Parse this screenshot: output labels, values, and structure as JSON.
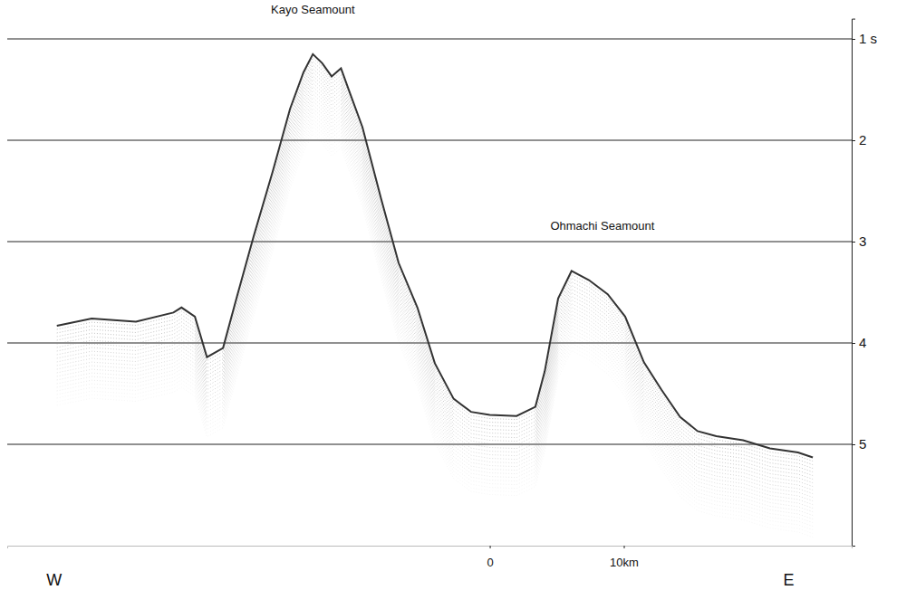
{
  "chart_data": {
    "type": "line",
    "annotations": [
      {
        "text": "Kayo Seamount",
        "x": -13.2,
        "y": 0.72
      },
      {
        "text": "Ohmachi Seamount",
        "x": 8.4,
        "y": 2.85
      },
      {
        "text": "W",
        "x": -32.5,
        "y": 6.35
      },
      {
        "text": "E",
        "x": 22.3,
        "y": 6.35
      }
    ],
    "x": [
      -32.3,
      -29.7,
      -26.4,
      -23.6,
      -23.0,
      -22.0,
      -21.1,
      -19.9,
      -18.9,
      -17.6,
      -16.2,
      -14.9,
      -13.9,
      -13.2,
      -12.5,
      -11.8,
      -11.1,
      -10.5,
      -9.5,
      -8.1,
      -6.8,
      -5.4,
      -4.1,
      -2.7,
      -1.4,
      0,
      2.0,
      3.4,
      4.1,
      5.1,
      6.1,
      7.4,
      8.8,
      10.1,
      11.5,
      12.8,
      14.2,
      15.5,
      16.9,
      18.9,
      20.9,
      23.0,
      24.1
    ],
    "series": [
      {
        "color": "#333333",
        "values": [
          3.83,
          3.76,
          3.79,
          3.7,
          3.65,
          3.74,
          4.14,
          4.05,
          3.56,
          2.94,
          2.31,
          1.69,
          1.33,
          1.15,
          1.24,
          1.37,
          1.29,
          1.51,
          1.87,
          2.58,
          3.21,
          3.65,
          4.2,
          4.55,
          4.68,
          4.71,
          4.72,
          4.63,
          4.28,
          3.56,
          3.29,
          3.38,
          3.52,
          3.74,
          4.19,
          4.46,
          4.73,
          4.87,
          4.92,
          4.96,
          5.04,
          5.08,
          5.13
        ]
      }
    ],
    "xlim": [
      -36,
      27
    ],
    "ylim": [
      0.8,
      6.0
    ],
    "xticks": [
      {
        "value": 0,
        "label": "0"
      },
      {
        "value": 10,
        "label": "10km"
      }
    ],
    "yticks": [
      {
        "value": 1,
        "label": "1 s"
      },
      2,
      3,
      4,
      5
    ],
    "grid": true
  }
}
